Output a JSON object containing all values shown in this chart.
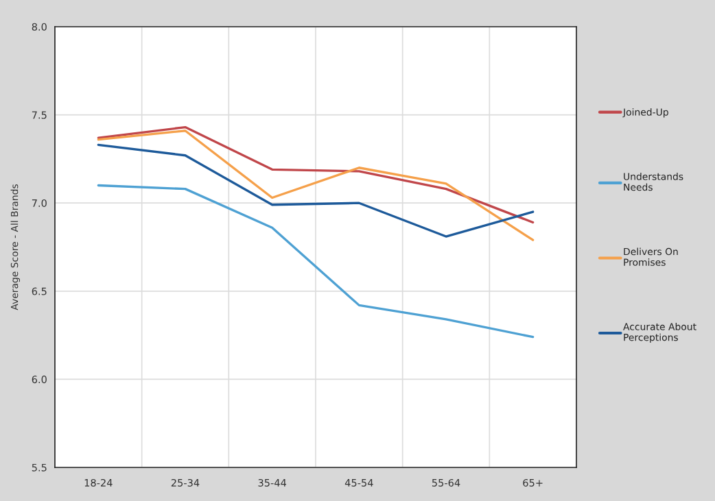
{
  "chart_data": {
    "type": "line",
    "ylabel": "Average Score - All Brands",
    "categories": [
      "18-24",
      "25-34",
      "35-44",
      "45-54",
      "55-64",
      "65+"
    ],
    "series": [
      {
        "name": "Joined-Up",
        "color": "#c0464a",
        "values": [
          7.37,
          7.43,
          7.19,
          7.18,
          7.08,
          6.89
        ]
      },
      {
        "name": "Understands Needs",
        "color": "#4ea1d3",
        "values": [
          7.1,
          7.08,
          6.86,
          6.42,
          6.34,
          6.24
        ]
      },
      {
        "name": "Delivers On Promises",
        "color": "#f5a04a",
        "values": [
          7.36,
          7.41,
          7.03,
          7.2,
          7.11,
          6.79
        ]
      },
      {
        "name": "Accurate About Perceptions",
        "color": "#1d5a9a",
        "values": [
          7.33,
          7.27,
          6.99,
          7.0,
          6.81,
          6.95
        ]
      }
    ],
    "ylim": [
      5.5,
      8.0
    ],
    "yticks": [
      5.5,
      {
        "value": 6,
        "label": "6.0"
      },
      6.5,
      {
        "value": 7,
        "label": "7.0"
      },
      7.5,
      {
        "value": 8,
        "label": "8.0"
      }
    ],
    "grid": true,
    "legend": "right",
    "marker": "none",
    "line_style": "solid"
  }
}
